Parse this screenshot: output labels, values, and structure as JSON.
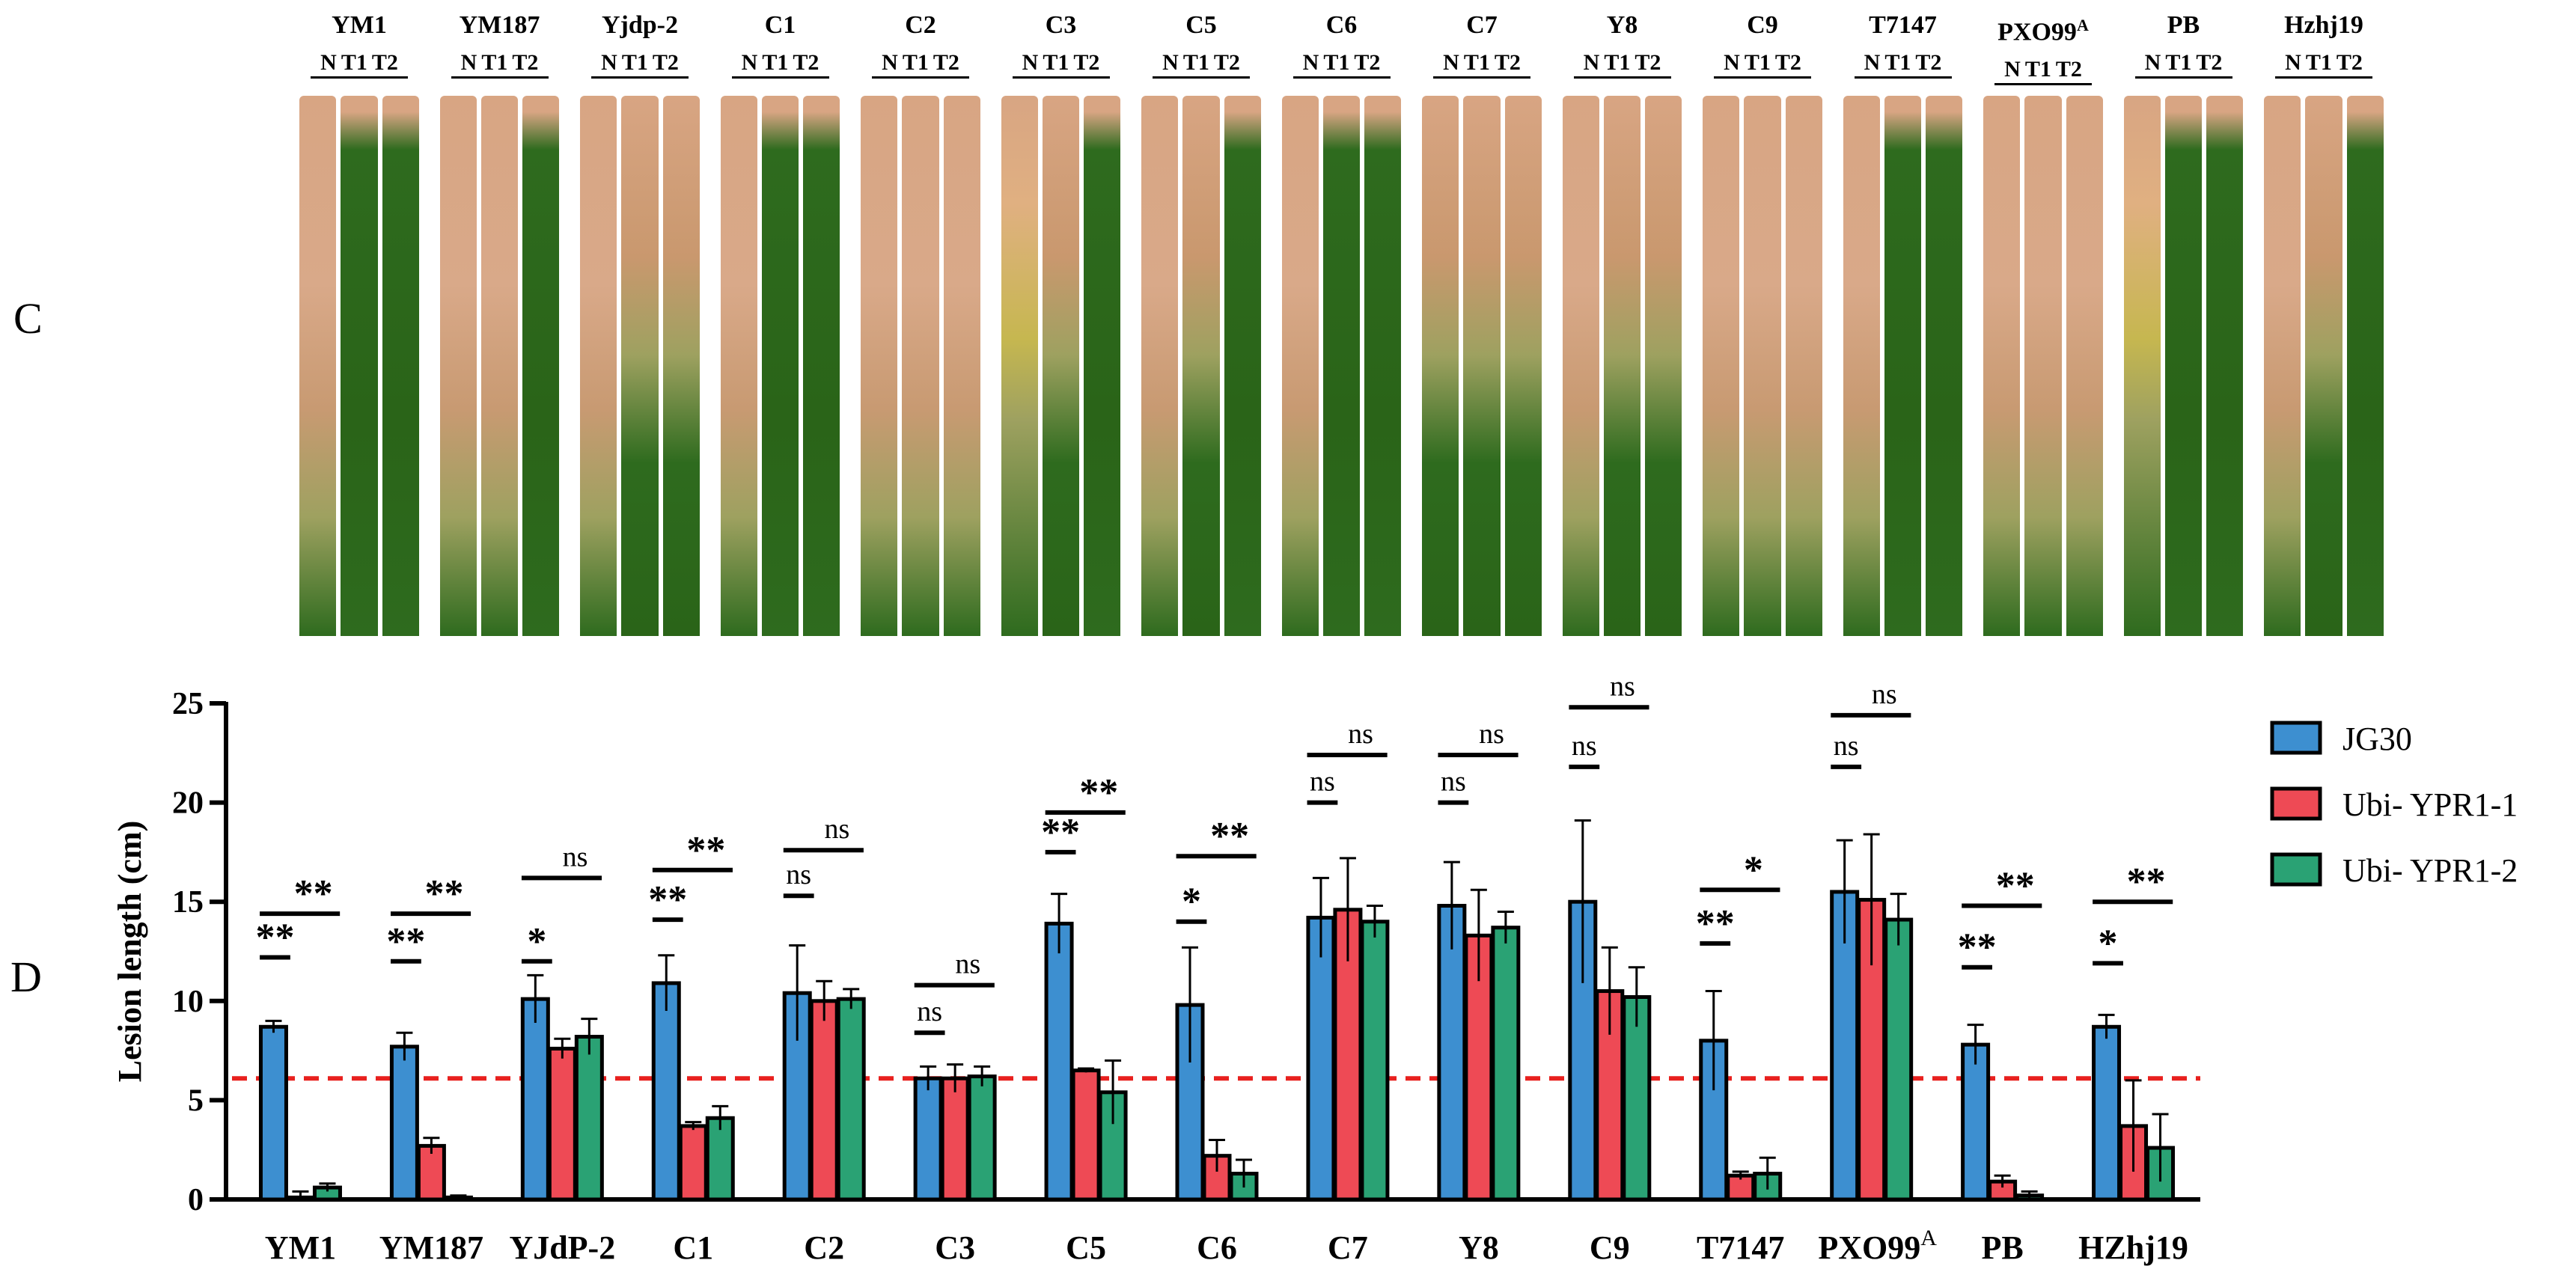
{
  "panels": {
    "c": "C",
    "d": "D"
  },
  "photo": {
    "columns": [
      {
        "label": "YM1",
        "sup": "",
        "sub": [
          "N",
          "T1",
          "T2"
        ],
        "leaves": [
          2,
          0,
          0
        ]
      },
      {
        "label": "YM187",
        "sup": "",
        "sub": [
          "N",
          "T1",
          "T2"
        ],
        "leaves": [
          2,
          2,
          0
        ]
      },
      {
        "label": "Yjdp-2",
        "sup": "",
        "sub": [
          "N",
          "T1",
          "T2"
        ],
        "leaves": [
          2,
          1,
          1
        ]
      },
      {
        "label": "C1",
        "sup": "",
        "sub": [
          "N",
          "T1",
          "T2"
        ],
        "leaves": [
          2,
          0,
          0
        ]
      },
      {
        "label": "C2",
        "sup": "",
        "sub": [
          "N",
          "T1",
          "T2"
        ],
        "leaves": [
          2,
          2,
          2
        ]
      },
      {
        "label": "C3",
        "sup": "",
        "sub": [
          "N",
          "T1",
          "T2"
        ],
        "leaves": [
          3,
          1,
          0
        ]
      },
      {
        "label": "C5",
        "sup": "",
        "sub": [
          "N",
          "T1",
          "T2"
        ],
        "leaves": [
          2,
          1,
          0
        ]
      },
      {
        "label": "C6",
        "sup": "",
        "sub": [
          "N",
          "T1",
          "T2"
        ],
        "leaves": [
          2,
          0,
          0
        ]
      },
      {
        "label": "C7",
        "sup": "",
        "sub": [
          "N",
          "T1",
          "T2"
        ],
        "leaves": [
          1,
          1,
          1
        ]
      },
      {
        "label": "Y8",
        "sup": "",
        "sub": [
          "N",
          "T1",
          "T2"
        ],
        "leaves": [
          2,
          1,
          1
        ]
      },
      {
        "label": "C9",
        "sup": "",
        "sub": [
          "N",
          "T1",
          "T2"
        ],
        "leaves": [
          2,
          2,
          2
        ]
      },
      {
        "label": "T7147",
        "sup": "",
        "sub": [
          "N",
          "T1",
          "T2"
        ],
        "leaves": [
          2,
          0,
          0
        ]
      },
      {
        "label": "PXO99",
        "sup": "A",
        "sub": [
          "N",
          "T1",
          "T2"
        ],
        "leaves": [
          2,
          2,
          2
        ]
      },
      {
        "label": "PB",
        "sup": "",
        "sub": [
          "N",
          "T1",
          "T2"
        ],
        "leaves": [
          3,
          0,
          0
        ]
      },
      {
        "label": "Hzhj19",
        "sup": "",
        "sub": [
          "N",
          "T1",
          "T2"
        ],
        "leaves": [
          2,
          1,
          0
        ]
      }
    ]
  },
  "colors": {
    "jg30": "#3d8fd0",
    "ubi1": "#ee4a55",
    "ubi2": "#2aa274",
    "threshold": "#e8201e",
    "leaf_healthy": "#2e6b1e",
    "leaf_lesion": "#d8a583",
    "leaf_mixed": "#9ea160",
    "leaf_yellow": "#c6b750"
  },
  "chart_data": {
    "type": "bar",
    "ylabel": "Lesion length (cm)",
    "xlabel": "",
    "ylim": [
      0,
      25
    ],
    "yticks": [
      0,
      5,
      10,
      15,
      20,
      25
    ],
    "threshold": 6.1,
    "categories": [
      "YM1",
      "YM187",
      "YJdP-2",
      "C1",
      "C2",
      "C3",
      "C5",
      "C6",
      "C7",
      "Y8",
      "C9",
      "T7147",
      "PXO99",
      "PB",
      "HZhj19"
    ],
    "category_sup": [
      "",
      "",
      "",
      "",
      "",
      "",
      "",
      "",
      "",
      "",
      "",
      "",
      "A",
      "",
      ""
    ],
    "series": [
      {
        "name": "JG30",
        "values": [
          8.7,
          7.7,
          10.1,
          10.9,
          10.4,
          6.1,
          13.9,
          9.8,
          14.2,
          14.8,
          15.0,
          8.0,
          15.5,
          7.8,
          8.7
        ],
        "errors": [
          0.3,
          0.7,
          1.2,
          1.4,
          2.4,
          0.6,
          1.5,
          2.9,
          2.0,
          2.2,
          4.1,
          2.5,
          2.6,
          1.0,
          0.6
        ]
      },
      {
        "name": "Ubi- YPR1-1",
        "values": [
          0.1,
          2.7,
          7.6,
          3.7,
          10.0,
          6.1,
          6.5,
          2.2,
          14.6,
          13.3,
          10.5,
          1.2,
          15.1,
          0.9,
          3.7
        ],
        "errors": [
          0.3,
          0.4,
          0.5,
          0.2,
          1.0,
          0.7,
          0.1,
          0.8,
          2.6,
          2.3,
          2.2,
          0.2,
          3.3,
          0.3,
          2.3
        ]
      },
      {
        "name": "Ubi- YPR1-2",
        "values": [
          0.6,
          0.1,
          8.2,
          4.1,
          10.1,
          6.2,
          5.4,
          1.3,
          14.0,
          13.7,
          10.2,
          1.3,
          14.1,
          0.2,
          2.6
        ],
        "errors": [
          0.2,
          0.1,
          0.9,
          0.6,
          0.5,
          0.5,
          1.6,
          0.7,
          0.8,
          0.8,
          1.5,
          0.8,
          1.3,
          0.2,
          1.7
        ]
      }
    ],
    "significance": [
      {
        "low": "**",
        "low_y": 12.2,
        "high": "**",
        "high_y": 14.4
      },
      {
        "low": "**",
        "low_y": 12.0,
        "high": "**",
        "high_y": 14.4
      },
      {
        "low": "*",
        "low_y": 12.0,
        "high": "ns",
        "high_y": 16.2
      },
      {
        "low": "**",
        "low_y": 14.1,
        "high": "**",
        "high_y": 16.6
      },
      {
        "low": "ns",
        "low_y": 15.3,
        "high": "ns",
        "high_y": 17.6
      },
      {
        "low": "ns",
        "low_y": 8.4,
        "high": "ns",
        "high_y": 10.8
      },
      {
        "low": "**",
        "low_y": 17.5,
        "high": "**",
        "high_y": 19.5
      },
      {
        "low": "*",
        "low_y": 14.0,
        "high": "**",
        "high_y": 17.3
      },
      {
        "low": "ns",
        "low_y": 20.0,
        "high": "ns",
        "high_y": 22.4
      },
      {
        "low": "ns",
        "low_y": 20.0,
        "high": "ns",
        "high_y": 22.4
      },
      {
        "low": "ns",
        "low_y": 21.8,
        "high": "ns",
        "high_y": 24.8
      },
      {
        "low": "**",
        "low_y": 12.9,
        "high": "*",
        "high_y": 15.6
      },
      {
        "low": "ns",
        "low_y": 21.8,
        "high": "ns",
        "high_y": 24.4
      },
      {
        "low": "**",
        "low_y": 11.7,
        "high": "**",
        "high_y": 14.8
      },
      {
        "low": "*",
        "low_y": 11.9,
        "high": "**",
        "high_y": 15.0
      }
    ],
    "legend": "right"
  }
}
